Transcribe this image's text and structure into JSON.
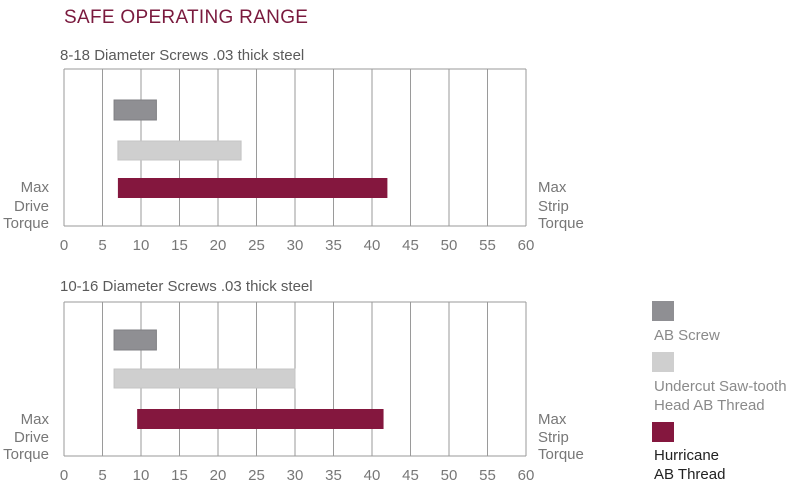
{
  "title": "SAFE OPERATING RANGE",
  "colors": {
    "ab_screw": "#8f8f93",
    "undercut": "#cfcfcf",
    "hurricane": "#84173e",
    "title": "#7a1a3e",
    "grid": "#9a9a9a"
  },
  "legend": [
    {
      "label": "AB Screw",
      "color": "#8f8f93",
      "text_color": "#8a8a8a"
    },
    {
      "label": "Undercut Saw-tooth Head AB Thread",
      "color": "#cfcfcf",
      "text_color": "#8a8a8a"
    },
    {
      "label": "Hurricane AB Thread",
      "color": "#84173e",
      "text_color": "#222222"
    }
  ],
  "chart_data": [
    {
      "type": "bar",
      "orientation": "horizontal-range",
      "title": "8-18 Diameter Screws  .03 thick steel",
      "left_label": "Max Drive Torque",
      "right_label": "Max Strip Torque",
      "xlim": [
        0,
        60
      ],
      "x_ticks": [
        "0",
        "5",
        "10",
        "15",
        "20",
        "25",
        "30",
        "35",
        "40",
        "45",
        "50",
        "55",
        "60"
      ],
      "grid": true,
      "series": [
        {
          "name": "AB Screw",
          "start": 6.5,
          "end": 12
        },
        {
          "name": "Undercut Saw-tooth Head AB Thread",
          "start": 7,
          "end": 23
        },
        {
          "name": "Hurricane AB Thread",
          "start": 7,
          "end": 42
        }
      ]
    },
    {
      "type": "bar",
      "orientation": "horizontal-range",
      "title": "10-16 Diameter Screws  .03 thick steel",
      "left_label": "Max Drive Torque",
      "right_label": "Max Strip Torque",
      "xlim": [
        0,
        60
      ],
      "x_ticks": [
        "0",
        "5",
        "10",
        "15",
        "20",
        "25",
        "30",
        "35",
        "40",
        "45",
        "50",
        "55",
        "60"
      ],
      "grid": true,
      "series": [
        {
          "name": "AB Screw",
          "start": 6.5,
          "end": 12
        },
        {
          "name": "Undercut Saw-tooth Head AB Thread",
          "start": 6.5,
          "end": 30
        },
        {
          "name": "Hurricane AB Thread",
          "start": 9.5,
          "end": 41.5
        }
      ]
    }
  ]
}
